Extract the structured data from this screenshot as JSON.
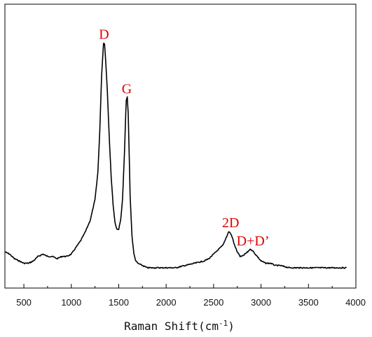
{
  "chart_data": {
    "type": "line",
    "title": "",
    "xlabel": "Raman Shift(cm",
    "xlabel_sup": "-1",
    "xlabel_close": ")",
    "ylabel": "",
    "xlim": [
      300,
      4000
    ],
    "ylim": [
      0,
      1.1
    ],
    "x_ticks": [
      500,
      1000,
      1500,
      2000,
      2500,
      3000,
      3500,
      4000
    ],
    "x_tick_labels": [
      "500",
      "1000",
      "1500",
      "2000",
      "2500",
      "3000",
      "3500",
      "4000"
    ],
    "y_ticks_shown": false,
    "grid": false,
    "legend": "none",
    "series": [
      {
        "x": [
          300,
          350,
          400,
          450,
          500,
          550,
          600,
          650,
          700,
          750,
          800,
          850,
          900,
          950,
          1000,
          1050,
          1100,
          1150,
          1200,
          1250,
          1280,
          1300,
          1320,
          1340,
          1350,
          1360,
          1380,
          1400,
          1420,
          1440,
          1460,
          1480,
          1500,
          1520,
          1540,
          1560,
          1570,
          1580,
          1590,
          1600,
          1610,
          1620,
          1640,
          1660,
          1680,
          1700,
          1750,
          1800,
          1900,
          2000,
          2100,
          2200,
          2300,
          2400,
          2450,
          2500,
          2550,
          2600,
          2620,
          2640,
          2660,
          2680,
          2700,
          2720,
          2750,
          2780,
          2800,
          2830,
          2860,
          2880,
          2900,
          2920,
          2940,
          2960,
          3000,
          3050,
          3100,
          3150,
          3200,
          3300,
          3400,
          3500,
          3600,
          3700,
          3800,
          3900
        ],
        "y": [
          0.07,
          0.06,
          0.04,
          0.03,
          0.02,
          0.02,
          0.03,
          0.05,
          0.06,
          0.05,
          0.05,
          0.04,
          0.05,
          0.05,
          0.06,
          0.09,
          0.12,
          0.16,
          0.21,
          0.3,
          0.42,
          0.6,
          0.85,
          0.99,
          0.985,
          0.93,
          0.78,
          0.58,
          0.4,
          0.28,
          0.2,
          0.17,
          0.17,
          0.21,
          0.3,
          0.5,
          0.63,
          0.74,
          0.75,
          0.68,
          0.5,
          0.32,
          0.14,
          0.06,
          0.03,
          0.02,
          0.01,
          0.0,
          0.0,
          0.0,
          0.0,
          0.01,
          0.02,
          0.03,
          0.04,
          0.06,
          0.08,
          0.1,
          0.12,
          0.14,
          0.16,
          0.15,
          0.13,
          0.1,
          0.07,
          0.05,
          0.05,
          0.06,
          0.07,
          0.08,
          0.08,
          0.07,
          0.06,
          0.05,
          0.03,
          0.02,
          0.02,
          0.01,
          0.01,
          0.0,
          0.0,
          0.0,
          0.0,
          0.0,
          0.0,
          0.0
        ]
      }
    ],
    "line_color": "#000000",
    "annotations": [
      {
        "text": "D",
        "x": 1345,
        "y": 0.99,
        "color": "#e00000"
      },
      {
        "text": "G",
        "x": 1585,
        "y": 0.75,
        "color": "#e00000"
      },
      {
        "text": "2D",
        "x": 2680,
        "y": 0.16,
        "color": "#e00000"
      },
      {
        "text": "D+D’",
        "x": 2915,
        "y": 0.08,
        "color": "#e00000"
      }
    ]
  }
}
